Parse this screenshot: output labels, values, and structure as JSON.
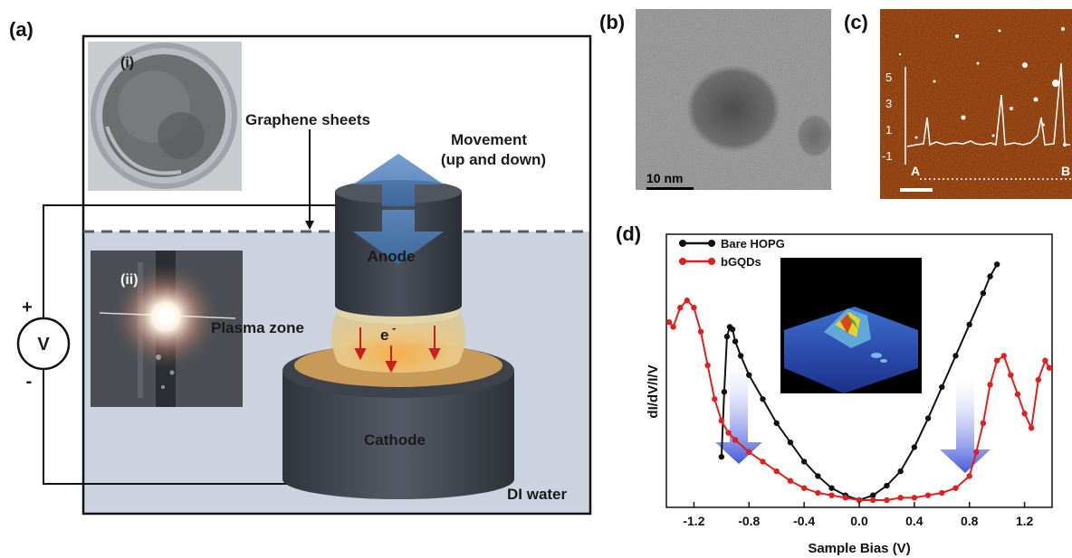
{
  "panels": {
    "a": "(a)",
    "b": "(b)",
    "c": "(c)",
    "d": "(d)"
  },
  "diagram_a": {
    "inset_i": "(i)",
    "inset_ii": "(ii)",
    "graphene_label": "Graphene sheets",
    "movement_line1": "Movement",
    "movement_line2": "(up and down)",
    "anode": "Anode",
    "cathode": "Cathode",
    "plasma": "Plasma zone",
    "electron": "e",
    "electron_sup": "-",
    "water": "DI water",
    "voltage": "V",
    "plus": "+",
    "minus": "-"
  },
  "tem_b": {
    "scale": "10 nm"
  },
  "afm_c": {
    "yticks": [
      "5",
      "3",
      "1",
      "-1"
    ],
    "point_a": "A",
    "point_b": "B"
  },
  "chart_data": {
    "type": "line",
    "xlabel": "Sample Bias (V)",
    "ylabel": "dI/dV/I/V",
    "xlim": [
      -1.4,
      1.4
    ],
    "xticks": [
      "-1.2",
      "-0.8",
      "-0.4",
      "0.0",
      "0.4",
      "0.8",
      "1.2"
    ],
    "legend_position": "top-left",
    "series": [
      {
        "name": "Bare HOPG",
        "color": "#111111",
        "x": [
          -1.0,
          -0.98,
          -0.96,
          -0.94,
          -0.92,
          -0.9,
          -0.86,
          -0.8,
          -0.7,
          -0.6,
          -0.5,
          -0.4,
          -0.3,
          -0.2,
          -0.1,
          0.0,
          0.1,
          0.2,
          0.3,
          0.4,
          0.5,
          0.6,
          0.7,
          0.8,
          0.9,
          0.95,
          1.0
        ],
        "y": [
          0.18,
          0.45,
          0.68,
          0.72,
          0.71,
          0.66,
          0.6,
          0.52,
          0.42,
          0.32,
          0.24,
          0.16,
          0.1,
          0.05,
          0.02,
          0.0,
          0.02,
          0.06,
          0.12,
          0.22,
          0.34,
          0.47,
          0.6,
          0.73,
          0.86,
          0.93,
          0.98
        ]
      },
      {
        "name": "bGQDs",
        "color": "#e01f1f",
        "x": [
          -1.38,
          -1.35,
          -1.3,
          -1.25,
          -1.2,
          -1.15,
          -1.1,
          -1.05,
          -1.0,
          -0.95,
          -0.9,
          -0.8,
          -0.7,
          -0.6,
          -0.5,
          -0.4,
          -0.3,
          -0.2,
          -0.1,
          0.0,
          0.1,
          0.2,
          0.3,
          0.4,
          0.5,
          0.6,
          0.7,
          0.8,
          0.85,
          0.9,
          0.95,
          1.0,
          1.05,
          1.1,
          1.15,
          1.2,
          1.25,
          1.3,
          1.35,
          1.38
        ],
        "y": [
          0.74,
          0.72,
          0.8,
          0.83,
          0.8,
          0.7,
          0.56,
          0.42,
          0.33,
          0.28,
          0.25,
          0.2,
          0.16,
          0.12,
          0.08,
          0.05,
          0.03,
          0.02,
          0.01,
          0.0,
          0.0,
          0.0,
          0.01,
          0.01,
          0.02,
          0.03,
          0.05,
          0.1,
          0.2,
          0.32,
          0.48,
          0.58,
          0.6,
          0.52,
          0.44,
          0.36,
          0.3,
          0.5,
          0.58,
          0.55
        ]
      }
    ]
  }
}
